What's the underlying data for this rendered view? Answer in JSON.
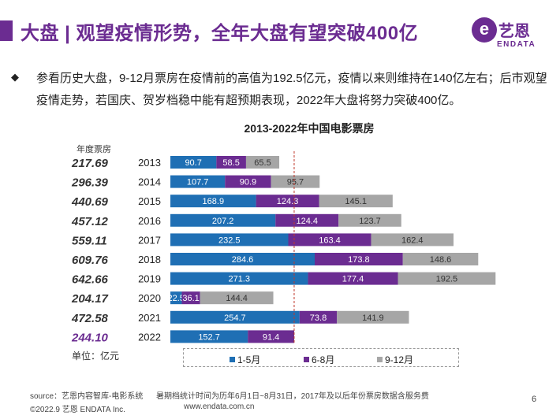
{
  "header": {
    "title": "大盘 | 观望疫情形势，全年大盘有望突破400亿",
    "logo_cn": "艺恩",
    "logo_en": "ENDATA",
    "logo_mark": "e"
  },
  "summary": {
    "bullet": "◆",
    "text": "参看历史大盘，9-12月票房在疫情前的高值为192.5亿元，疫情以来则维持在140亿左右；后市观望疫情走势，若国庆、贺岁档稳中能有超预期表现，2022年大盘将努力突破400亿。"
  },
  "chart_data": {
    "type": "bar",
    "orientation": "horizontal",
    "stacked": true,
    "title": "2013-2022年中国电影票房",
    "annual_label": "年度票房",
    "unit_label": "单位：亿元",
    "categories": [
      "2013",
      "2014",
      "2015",
      "2016",
      "2017",
      "2018",
      "2019",
      "2020",
      "2021",
      "2022"
    ],
    "annual_totals": [
      "217.69",
      "296.39",
      "440.69",
      "457.12",
      "559.11",
      "609.76",
      "642.66",
      "204.17",
      "472.58",
      "244.10"
    ],
    "series": [
      {
        "name": "1-5月",
        "color": "#1f6fb4",
        "values": [
          90.7,
          107.7,
          168.9,
          207.2,
          232.5,
          284.6,
          271.3,
          22.5,
          254.7,
          152.7
        ]
      },
      {
        "name": "6-8月",
        "color": "#6b2c91",
        "values": [
          58.5,
          90.9,
          124.3,
          124.4,
          163.4,
          173.8,
          177.4,
          36.1,
          73.8,
          91.4
        ]
      },
      {
        "name": "9-12月",
        "color": "#a6a6a6",
        "values": [
          65.5,
          95.7,
          145.1,
          123.7,
          162.4,
          148.6,
          192.5,
          144.4,
          141.9,
          null
        ]
      }
    ],
    "xlim": [
      0,
      700
    ],
    "reference_line": {
      "x": 244.1,
      "style": "dashed",
      "color": "#c0392b"
    },
    "legend_position": "bottom"
  },
  "footer": {
    "source": "source：艺恩内容智库-电影系统",
    "note": "暑期档统计时间为历年6月1日~8月31日，2017年及以后年份票房数据含服务费",
    "copyright": "©2022.9 艺恩 ENDATA Inc.",
    "url": "www.endata.com.cn",
    "page": "6"
  }
}
